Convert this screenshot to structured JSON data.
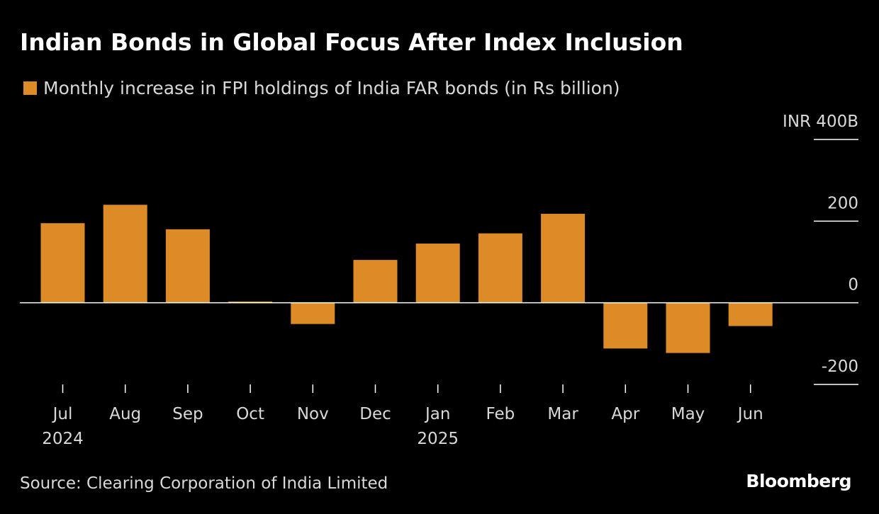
{
  "title": "Indian Bonds in Global Focus After Index Inclusion",
  "legend_label": "Monthly increase in FPI holdings of India FAR bonds (in Rs billion)",
  "source": "Source: Clearing Corporation of India Limited",
  "brand": "Bloomberg",
  "colors": {
    "background": "#000000",
    "bar": "#dc8b27",
    "text": "#ffffff",
    "muted_text": "#d9d9d9",
    "axis": "#ffffff"
  },
  "chart_data": {
    "type": "bar",
    "categories": [
      "Jul",
      "Aug",
      "Sep",
      "Oct",
      "Nov",
      "Dec",
      "Jan",
      "Feb",
      "Mar",
      "Apr",
      "May",
      "Jun"
    ],
    "year_labels": [
      "2024",
      "",
      "",
      "",
      "",
      "",
      "2025",
      "",
      "",
      "",
      "",
      ""
    ],
    "series": [
      {
        "name": "Monthly increase in FPI holdings of India FAR bonds (in Rs billion)",
        "values": [
          195,
          240,
          180,
          3,
          -52,
          105,
          145,
          170,
          218,
          -112,
          -123,
          -57
        ]
      }
    ],
    "ylim": [
      -200,
      400
    ],
    "y_ticks": [
      {
        "value": 400,
        "label": "INR 400B"
      },
      {
        "value": 200,
        "label": "200"
      },
      {
        "value": 0,
        "label": "0"
      },
      {
        "value": -200,
        "label": "-200"
      }
    ],
    "xlabel": "",
    "ylabel": "",
    "axis_position": "right"
  }
}
